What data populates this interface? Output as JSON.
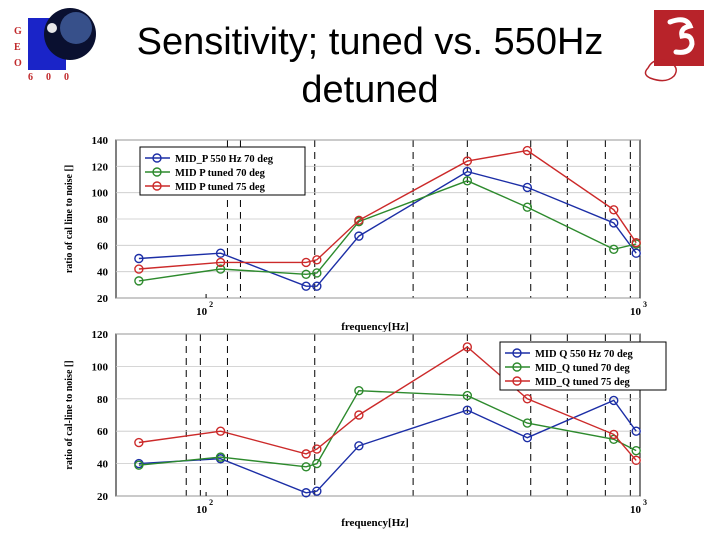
{
  "slide": {
    "title": "Sensitivity; tuned vs. 550Hz detuned",
    "logo_left_letters": [
      "G",
      "E",
      "O",
      "6",
      "0",
      "0"
    ]
  },
  "chart_data": [
    {
      "type": "line",
      "xscale": "log",
      "xlim": [
        62,
        1000
      ],
      "ylim": [
        20,
        140
      ],
      "yticks": [
        20,
        40,
        60,
        80,
        100,
        120,
        140
      ],
      "xtick_labels": [
        "10",
        "2",
        "10",
        "3"
      ],
      "xlabel": "frequency[Hz]",
      "ylabel": "ratio of cal line to noise []",
      "legend_position": "top-left",
      "grid": "dashed vertical lines at harmonic frequencies",
      "vlines_hz": [
        112,
        120,
        178,
        300,
        400,
        560,
        680,
        832,
        950
      ],
      "series": [
        {
          "name": "MID_P 550 Hz 70 deg",
          "color": "#1c2ea6",
          "x": [
            70,
            108,
            170,
            180,
            225,
            400,
            550,
            870,
            980
          ],
          "y": [
            50,
            54,
            29,
            29,
            67,
            116,
            104,
            77,
            54
          ]
        },
        {
          "name": "MID P tuned 70 deg",
          "color": "#2d8a2d",
          "x": [
            70,
            108,
            170,
            180,
            225,
            400,
            550,
            870,
            980
          ],
          "y": [
            33,
            42,
            38,
            39,
            78,
            109,
            89,
            57,
            61
          ]
        },
        {
          "name": "MID P tuned 75 deg",
          "color": "#cc2a2a",
          "x": [
            70,
            108,
            170,
            180,
            225,
            400,
            550,
            870,
            980
          ],
          "y": [
            42,
            47,
            47,
            49,
            79,
            124,
            132,
            87,
            62
          ]
        }
      ]
    },
    {
      "type": "line",
      "xscale": "log",
      "xlim": [
        62,
        1000
      ],
      "ylim": [
        20,
        120
      ],
      "yticks": [
        20,
        40,
        60,
        80,
        100,
        120
      ],
      "xtick_labels": [
        "10",
        "2",
        "10",
        "3"
      ],
      "xlabel": "frequency[Hz]",
      "ylabel": "ratio of cal-line to noise []",
      "legend_position": "top-right",
      "grid": "dashed vertical lines at harmonic frequencies",
      "vlines_hz": [
        90,
        97,
        112,
        178,
        300,
        400,
        560,
        680,
        832,
        950
      ],
      "series": [
        {
          "name": "MID Q 550 Hz 70 deg",
          "color": "#1c2ea6",
          "x": [
            70,
            108,
            170,
            180,
            225,
            400,
            550,
            870,
            980
          ],
          "y": [
            40,
            43,
            22,
            23,
            51,
            73,
            56,
            79,
            60
          ]
        },
        {
          "name": "MID_Q tuned 70 deg",
          "color": "#2d8a2d",
          "x": [
            70,
            108,
            170,
            180,
            225,
            400,
            550,
            870,
            980
          ],
          "y": [
            39,
            44,
            38,
            40,
            85,
            82,
            65,
            55,
            48
          ]
        },
        {
          "name": "MID_Q tuned 75 deg",
          "color": "#cc2a2a",
          "x": [
            70,
            108,
            170,
            180,
            225,
            400,
            550,
            870,
            980
          ],
          "y": [
            53,
            60,
            46,
            49,
            70,
            112,
            80,
            58,
            42
          ]
        }
      ]
    }
  ]
}
